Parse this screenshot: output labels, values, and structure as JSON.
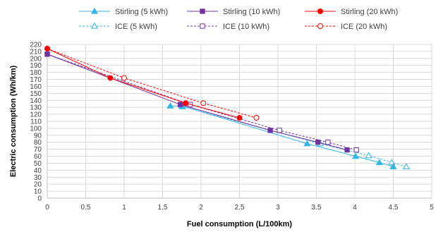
{
  "chart_data": {
    "type": "scatter",
    "title": "",
    "xlabel": "Fuel consumption  (L/100km)",
    "ylabel": "Electric consumption  (Wh/km)",
    "xlim": [
      0,
      5
    ],
    "ylim": [
      0,
      220
    ],
    "xticks": [
      0,
      0.5,
      1,
      1.5,
      2,
      2.5,
      3,
      3.5,
      4,
      4.5,
      5
    ],
    "yticks": [
      0,
      10,
      20,
      30,
      40,
      50,
      60,
      70,
      80,
      90,
      100,
      110,
      120,
      130,
      140,
      150,
      160,
      170,
      180,
      190,
      200,
      210,
      220
    ],
    "xtick_labels": [
      "0",
      "0.5",
      "1",
      "1.5",
      "2",
      "2.5",
      "3",
      "3.5",
      "4",
      "4.5",
      "5"
    ],
    "ytick_labels": [
      "0",
      "10",
      "20",
      "30",
      "40",
      "50",
      "60",
      "70",
      "80",
      "90",
      "100",
      "110",
      "120",
      "130",
      "140",
      "150",
      "160",
      "170",
      "180",
      "190",
      "200",
      "210",
      "220"
    ],
    "grid": true,
    "legend_position": "top",
    "series": [
      {
        "name": "Stirling (5 kWh)",
        "color": "#33b5e5",
        "line": "solid",
        "marker": "triangle",
        "filled": true,
        "x": [
          1.6,
          1.75,
          3.38,
          4.01,
          4.32,
          4.5
        ],
        "y": [
          132,
          132,
          78,
          60,
          51,
          45
        ]
      },
      {
        "name": "Stirling (10 kWh)",
        "color": "#7030a0",
        "line": "solid",
        "marker": "square",
        "filled": true,
        "x": [
          0.0,
          1.73,
          2.9,
          3.52,
          3.9
        ],
        "y": [
          206,
          134,
          97,
          80,
          69
        ]
      },
      {
        "name": "Stirling (20 kWh)",
        "color": "#ff0000",
        "line": "solid",
        "marker": "circle",
        "filled": true,
        "x": [
          0.0,
          0.82,
          1.8,
          2.5
        ],
        "y": [
          214,
          172,
          136,
          115
        ]
      },
      {
        "name": "ICE (5 kWh)",
        "color": "#33b5e5",
        "line": "dashed",
        "marker": "triangle",
        "filled": false,
        "x": [
          1.76,
          3.55,
          4.18,
          4.48,
          4.67
        ],
        "y": [
          131,
          78,
          61,
          51,
          45
        ]
      },
      {
        "name": "ICE (10 kWh)",
        "color": "#7030a0",
        "line": "dashed",
        "marker": "square",
        "filled": false,
        "x": [
          0.0,
          1.86,
          3.02,
          3.65,
          4.02
        ],
        "y": [
          206,
          134,
          97,
          80,
          69
        ]
      },
      {
        "name": "ICE (20 kWh)",
        "color": "#ff0000",
        "line": "dashed",
        "marker": "circle",
        "filled": false,
        "x": [
          0.0,
          1.0,
          2.03,
          2.72
        ],
        "y": [
          214,
          172,
          136,
          115
        ]
      }
    ]
  }
}
